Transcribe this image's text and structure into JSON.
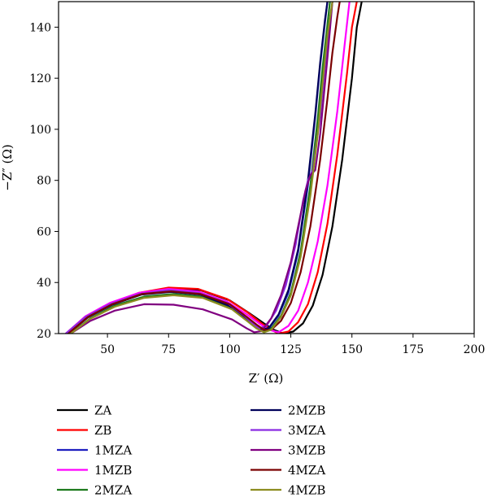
{
  "chart_data": {
    "type": "line",
    "title": "",
    "xlabel": "Z′ (Ω)",
    "ylabel": "−Z″ (Ω)",
    "xlim": [
      30,
      200
    ],
    "ylim": [
      20,
      150
    ],
    "xticks": [
      50,
      75,
      100,
      125,
      150,
      175,
      200
    ],
    "yticks": [
      20,
      40,
      60,
      80,
      100,
      120,
      140
    ],
    "xtick_labels": [
      "50",
      "75",
      "100",
      "125",
      "150",
      "175",
      "200"
    ],
    "ytick_labels": [
      "20",
      "40",
      "60",
      "80",
      "100",
      "120",
      "140"
    ],
    "grid": false,
    "legend_position": "bottom, two columns",
    "series": [
      {
        "name": "ZA",
        "color": "#000000",
        "x": [
          34,
          42,
          52,
          64,
          76,
          88,
          100,
          108,
          114,
          118,
          122,
          126,
          130,
          134,
          138,
          142,
          146,
          150,
          152,
          154
        ],
        "y": [
          20,
          26.5,
          31.5,
          35.5,
          37.5,
          37,
          33,
          28,
          24,
          21.5,
          20,
          20.8,
          24,
          31,
          43,
          62,
          88,
          120,
          140,
          150
        ]
      },
      {
        "name": "ZB",
        "color": "#ff0000",
        "x": [
          33,
          41,
          51,
          63,
          75,
          87,
          99,
          107,
          113,
          117,
          120,
          124,
          128,
          132,
          136,
          140,
          144,
          148,
          150,
          152
        ],
        "y": [
          20,
          26.7,
          31.8,
          36,
          38,
          37.5,
          33.5,
          28.5,
          24,
          21.5,
          20,
          20.8,
          24.5,
          31.5,
          44,
          63,
          90,
          122,
          140,
          150
        ]
      },
      {
        "name": "1MZA",
        "color": "#1f1fbf",
        "x": [
          34,
          42,
          52,
          64,
          76,
          88,
          100,
          106,
          110,
          113,
          116,
          120,
          124,
          128,
          132,
          135,
          137,
          139,
          140
        ],
        "y": [
          20,
          26.5,
          31.5,
          35.5,
          36.5,
          35.5,
          31,
          26.5,
          23.5,
          21.5,
          22,
          27,
          36,
          52,
          78,
          105,
          125,
          142,
          150
        ]
      },
      {
        "name": "1MZB",
        "color": "#ff00ff",
        "x": [
          33,
          41,
          51,
          63,
          75,
          87,
          99,
          107,
          112,
          116,
          120,
          124,
          128,
          132,
          136,
          140,
          144,
          147,
          149
        ],
        "y": [
          20,
          26.8,
          32,
          36,
          37.5,
          36.5,
          32.5,
          27.5,
          24,
          21.5,
          20.5,
          23,
          29,
          40,
          56,
          78,
          107,
          133,
          150
        ]
      },
      {
        "name": "2MZA",
        "color": "#1d7a1d",
        "x": [
          35,
          43,
          53,
          65,
          77,
          89,
          101,
          107,
          111,
          114,
          117,
          121,
          125,
          129,
          133,
          136,
          138,
          140,
          141
        ],
        "y": [
          20,
          26,
          31,
          34.5,
          35.5,
          34.5,
          30,
          25.5,
          22.5,
          21,
          22,
          27,
          36,
          52,
          78,
          104,
          124,
          141,
          150
        ]
      },
      {
        "name": "2MZB",
        "color": "#00005a",
        "x": [
          34,
          42,
          52,
          64,
          76,
          88,
          100,
          106,
          110,
          113,
          116,
          120,
          124,
          128,
          132,
          135,
          137,
          139,
          140
        ],
        "y": [
          20,
          26.3,
          31.3,
          35.3,
          36.3,
          35.3,
          30.8,
          26.3,
          23.3,
          21.5,
          22.2,
          27.5,
          37,
          53,
          80,
          106,
          126,
          143,
          150
        ]
      },
      {
        "name": "3MZA",
        "color": "#8a2be2",
        "x": [
          33,
          41,
          51,
          63,
          75,
          87,
          99,
          106,
          110,
          112,
          115,
          119,
          123,
          127,
          130,
          132,
          134,
          137,
          139,
          141,
          142
        ],
        "y": [
          20,
          26.5,
          31.5,
          35.5,
          37,
          36,
          32,
          27,
          23.5,
          22,
          23,
          29,
          39,
          55,
          72,
          80,
          84,
          105,
          125,
          142,
          150
        ]
      },
      {
        "name": "3MZB",
        "color": "#800080",
        "x": [
          35,
          43,
          53,
          65,
          77,
          89,
          101,
          107,
          110,
          113,
          117,
          121,
          125,
          128,
          131,
          133,
          135,
          137,
          140,
          142
        ],
        "y": [
          20,
          25,
          29,
          31.5,
          31.3,
          29.5,
          25.5,
          22,
          20.5,
          21,
          26,
          35,
          48,
          62,
          76,
          82,
          84,
          98,
          128,
          150
        ]
      },
      {
        "name": "4MZA",
        "color": "#7a0000",
        "x": [
          34,
          42,
          52,
          64,
          76,
          88,
          100,
          107,
          111,
          114,
          117,
          121,
          125,
          129,
          133,
          137,
          140,
          142,
          144,
          145
        ],
        "y": [
          20,
          26.5,
          31.5,
          35.5,
          36.5,
          35.5,
          31.5,
          26.5,
          23.5,
          21.5,
          21.5,
          25,
          32,
          44,
          62,
          88,
          112,
          130,
          144,
          150
        ]
      },
      {
        "name": "4MZB",
        "color": "#8c8c20",
        "x": [
          35,
          43,
          53,
          65,
          77,
          89,
          101,
          107,
          111,
          114,
          117,
          121,
          125,
          129,
          133,
          136,
          138,
          140,
          142
        ],
        "y": [
          20,
          25.8,
          30.5,
          34,
          35,
          34,
          29.5,
          25,
          22,
          20.5,
          21.5,
          26.5,
          35,
          50,
          74,
          98,
          118,
          137,
          150
        ]
      }
    ]
  }
}
